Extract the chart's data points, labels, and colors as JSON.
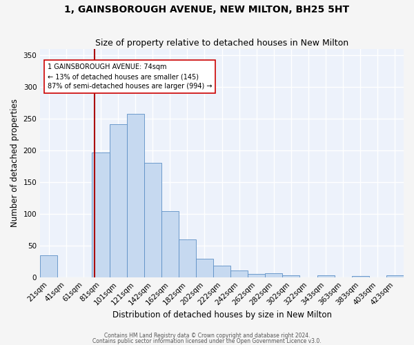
{
  "title": "1, GAINSBOROUGH AVENUE, NEW MILTON, BH25 5HT",
  "subtitle": "Size of property relative to detached houses in New Milton",
  "xlabel": "Distribution of detached houses by size in New Milton",
  "ylabel": "Number of detached properties",
  "bar_labels": [
    "21sqm",
    "41sqm",
    "61sqm",
    "81sqm",
    "101sqm",
    "121sqm",
    "142sqm",
    "162sqm",
    "182sqm",
    "202sqm",
    "222sqm",
    "242sqm",
    "262sqm",
    "282sqm",
    "302sqm",
    "322sqm",
    "343sqm",
    "363sqm",
    "383sqm",
    "403sqm",
    "423sqm"
  ],
  "bar_values": [
    35,
    0,
    0,
    197,
    241,
    258,
    181,
    105,
    60,
    30,
    19,
    11,
    6,
    7,
    3,
    0,
    4,
    0,
    2,
    0,
    3
  ],
  "bar_color": "#c6d9f0",
  "bar_edge_color": "#5b8ec4",
  "background_color": "#edf2fb",
  "grid_color": "#ffffff",
  "vline_color": "#aa0000",
  "annotation_text": "1 GAINSBOROUGH AVENUE: 74sqm\n← 13% of detached houses are smaller (145)\n87% of semi-detached houses are larger (994) →",
  "annotation_box_color": "#ffffff",
  "annotation_box_edge": "#cc0000",
  "footnote1": "Contains HM Land Registry data © Crown copyright and database right 2024.",
  "footnote2": "Contains public sector information licensed under the Open Government Licence v3.0.",
  "ylim": [
    0,
    360
  ],
  "yticks": [
    0,
    50,
    100,
    150,
    200,
    250,
    300,
    350
  ],
  "title_fontsize": 10,
  "subtitle_fontsize": 9,
  "xlabel_fontsize": 8.5,
  "ylabel_fontsize": 8.5,
  "tick_fontsize": 7.5,
  "annot_fontsize": 7,
  "footnote_fontsize": 5.5
}
